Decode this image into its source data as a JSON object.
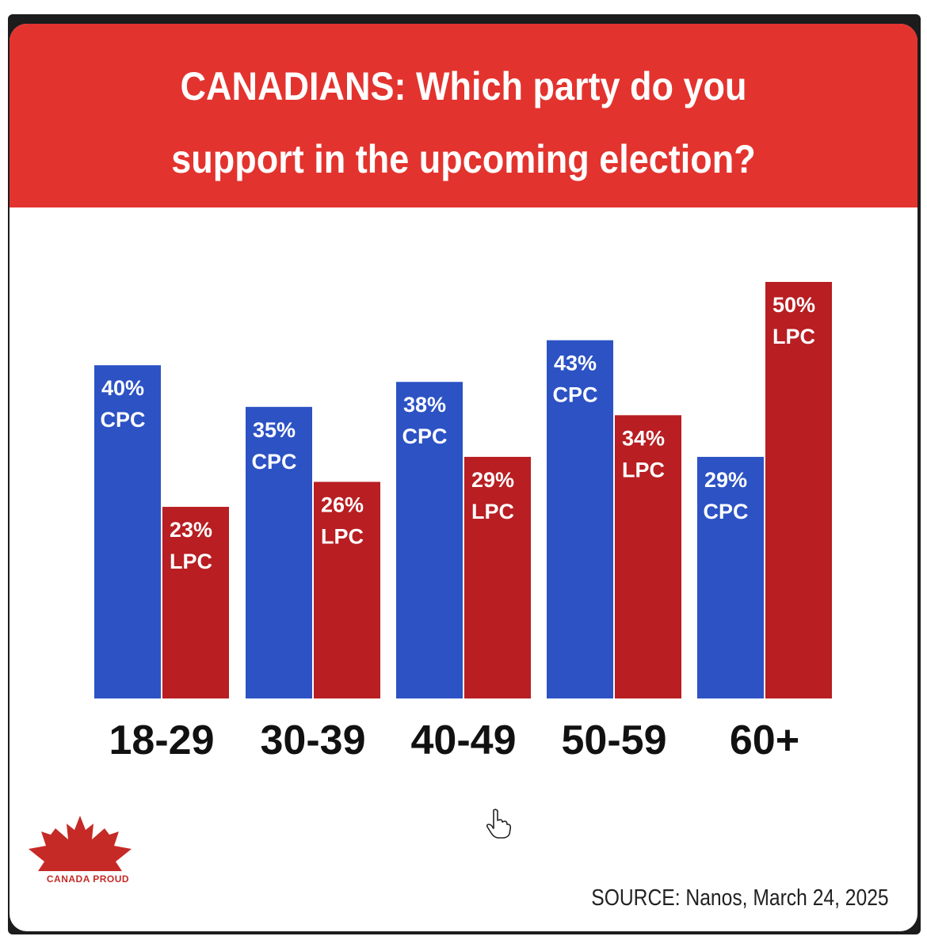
{
  "colors": {
    "header": "#e3332e",
    "cpc": "#2c52c4",
    "lpc": "#b81e22",
    "logo": "#c62a26"
  },
  "chart_data": {
    "type": "bar",
    "title": "CANADIANS: Which party do you support in the upcoming election?",
    "title_lines": [
      "CANADIANS: Which party do you",
      "support in the upcoming election?"
    ],
    "categories": [
      "18-29",
      "30-39",
      "40-49",
      "50-59",
      "60+"
    ],
    "series": [
      {
        "name": "CPC",
        "values": [
          40,
          35,
          38,
          43,
          29
        ]
      },
      {
        "name": "LPC",
        "values": [
          23,
          26,
          29,
          34,
          50
        ]
      }
    ],
    "value_suffix": "%",
    "xlabel": "",
    "ylabel": "",
    "ylim": [
      0,
      50
    ]
  },
  "footer": {
    "logo_text": "CANADA PROUD",
    "source": "SOURCE: Nanos, March 24, 2025"
  },
  "icons": {
    "logo": "maple-leaf-icon",
    "cursor": "hand-pointer-icon"
  }
}
